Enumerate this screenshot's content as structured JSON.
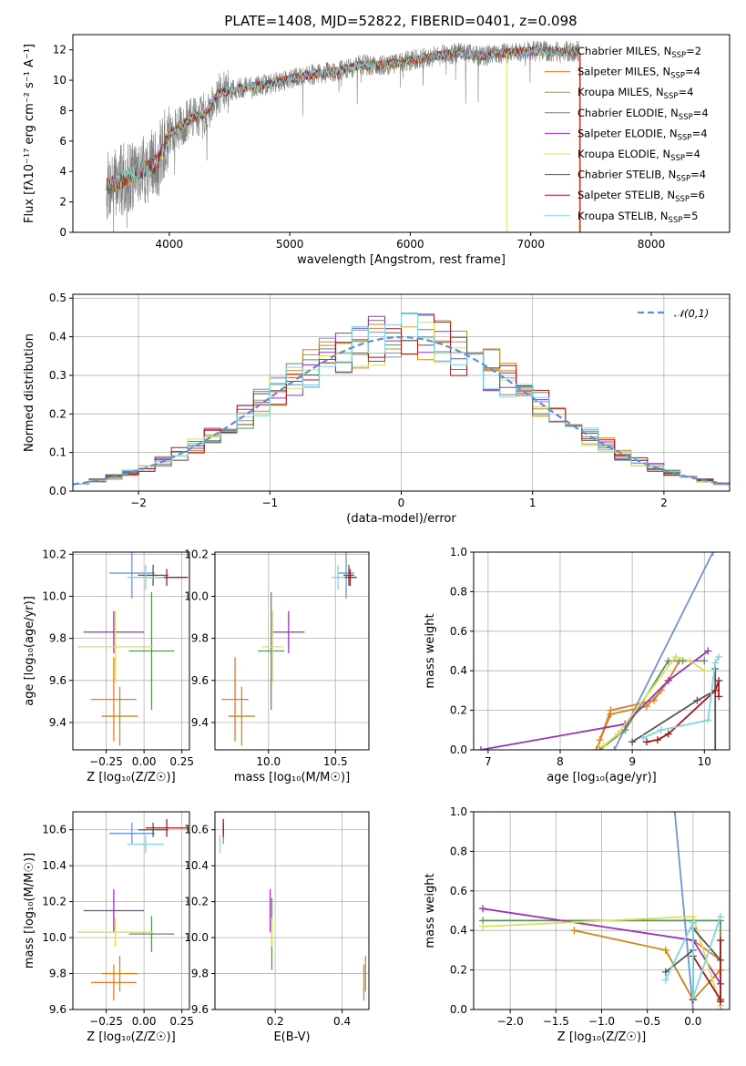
{
  "figure_title": "PLATE=1408, MJD=52822, FIBERID=0401, z=0.098",
  "models": [
    {
      "name": "Chabrier MILES",
      "nssp": "2",
      "color": "#6f93d6"
    },
    {
      "name": "Salpeter MILES",
      "nssp": "4",
      "color": "#e8782f"
    },
    {
      "name": "Kroupa MILES",
      "nssp": "4",
      "color": "#cc8a1a"
    },
    {
      "name": "Chabrier ELODIE",
      "nssp": "4",
      "color": "#5f8f5f"
    },
    {
      "name": "Salpeter ELODIE",
      "nssp": "4",
      "color": "#9932b8"
    },
    {
      "name": "Kroupa ELODIE",
      "nssp": "4",
      "color": "#d7e05a"
    },
    {
      "name": "Chabrier STELIB",
      "nssp": "4",
      "color": "#555555"
    },
    {
      "name": "Salpeter STELIB",
      "nssp": "6",
      "color": "#a81818"
    },
    {
      "name": "Kroupa STELIB",
      "nssp": "5",
      "color": "#7fd6e0"
    }
  ],
  "chart_data": [
    {
      "id": "spectrum",
      "type": "line",
      "title": "PLATE=1408, MJD=52822, FIBERID=0401, z=0.098",
      "xlabel": "wavelength [Angstrom, rest frame]",
      "ylabel": "Flux [fλ10⁻¹⁷ erg cm⁻² s⁻¹ A⁻¹]",
      "xlim": [
        3200,
        8650
      ],
      "ylim": [
        0,
        13
      ],
      "xticks": [
        4000,
        5000,
        6000,
        7000,
        8000
      ],
      "yticks": [
        0,
        2,
        4,
        6,
        8,
        10,
        12
      ],
      "legend_position": "right",
      "data_color": "#808080",
      "continuum": {
        "x": [
          3480,
          3600,
          3750,
          3900,
          4000,
          4100,
          4200,
          4300,
          4400,
          4600,
          4800,
          5000,
          5200,
          5400,
          5600,
          5800,
          6000,
          6200,
          6400,
          6600,
          6800,
          7000,
          7200,
          7400
        ],
        "y": [
          3.0,
          3.4,
          4.0,
          4.5,
          6.4,
          7.0,
          7.6,
          7.8,
          9.1,
          9.5,
          9.7,
          10.1,
          10.4,
          10.6,
          11.0,
          11.0,
          11.3,
          11.6,
          11.8,
          11.6,
          11.8,
          11.9,
          11.9,
          11.9
        ]
      }
    },
    {
      "id": "residuals",
      "type": "histogram",
      "xlabel": "(data-model)/error",
      "ylabel": "Normed distribution",
      "xlim": [
        -2.5,
        2.5
      ],
      "ylim": [
        0,
        0.51
      ],
      "xticks": [
        -2,
        -1,
        0,
        1,
        2
      ],
      "yticks": [
        0.0,
        0.1,
        0.2,
        0.3,
        0.4,
        0.5
      ],
      "reference_label": "𝒩(0,1)",
      "reference_color": "#5b8ed6"
    },
    {
      "id": "age_vs_Z",
      "type": "scatter",
      "xlabel": "Z [log₁₀(Z/Z☉)]",
      "ylabel": "age  [log₁₀(age/yr)]",
      "xlim": [
        -0.47,
        0.3
      ],
      "ylim": [
        9.27,
        10.21
      ],
      "xticks": [
        -0.25,
        0.0,
        0.25
      ],
      "yticks": [
        9.4,
        9.6,
        9.8,
        10.0,
        10.2
      ],
      "points": [
        {
          "x": -0.08,
          "y": 10.11,
          "xerr": 0.15,
          "yerr": 0.12,
          "model": 0
        },
        {
          "x": -0.2,
          "y": 9.51,
          "xerr": 0.15,
          "yerr": 0.2,
          "model": 1
        },
        {
          "x": -0.16,
          "y": 9.43,
          "xerr": 0.12,
          "yerr": 0.14,
          "model": 2
        },
        {
          "x": 0.05,
          "y": 9.74,
          "xerr": 0.15,
          "yerr": 0.28,
          "model": 3
        },
        {
          "x": -0.2,
          "y": 9.83,
          "xerr": 0.2,
          "yerr": 0.1,
          "model": 4
        },
        {
          "x": -0.19,
          "y": 9.76,
          "xerr": 0.25,
          "yerr": 0.17,
          "model": 5
        },
        {
          "x": 0.06,
          "y": 10.1,
          "xerr": 0.1,
          "yerr": 0.05,
          "model": 6
        },
        {
          "x": 0.15,
          "y": 10.09,
          "xerr": 0.14,
          "yerr": 0.04,
          "model": 7
        },
        {
          "x": 0.01,
          "y": 10.09,
          "xerr": 0.12,
          "yerr": 0.06,
          "model": 8
        }
      ]
    },
    {
      "id": "age_vs_mass",
      "type": "scatter",
      "xlabel": "mass [log₁₀(M/M☉)]",
      "ylabel": "",
      "xlim": [
        9.6,
        10.75
      ],
      "ylim": [
        9.27,
        10.21
      ],
      "xticks": [
        10.0,
        10.5
      ],
      "yticks": [
        9.4,
        9.6,
        9.8,
        10.0,
        10.2
      ],
      "points": [
        {
          "x": 10.58,
          "y": 10.11,
          "xerr": 0.06,
          "yerr": 0.12,
          "model": 0
        },
        {
          "x": 9.75,
          "y": 9.51,
          "xerr": 0.1,
          "yerr": 0.2,
          "model": 1
        },
        {
          "x": 9.8,
          "y": 9.43,
          "xerr": 0.1,
          "yerr": 0.14,
          "model": 2
        },
        {
          "x": 10.02,
          "y": 9.74,
          "xerr": 0.1,
          "yerr": 0.28,
          "model": 3
        },
        {
          "x": 10.15,
          "y": 9.83,
          "xerr": 0.12,
          "yerr": 0.1,
          "model": 4
        },
        {
          "x": 10.03,
          "y": 9.76,
          "xerr": 0.08,
          "yerr": 0.17,
          "model": 5
        },
        {
          "x": 10.6,
          "y": 10.1,
          "xerr": 0.04,
          "yerr": 0.05,
          "model": 6
        },
        {
          "x": 10.61,
          "y": 10.09,
          "xerr": 0.05,
          "yerr": 0.04,
          "model": 7
        },
        {
          "x": 10.52,
          "y": 10.09,
          "xerr": 0.05,
          "yerr": 0.06,
          "model": 8
        }
      ]
    },
    {
      "id": "mass_weight_vs_age",
      "type": "line",
      "xlabel": "age  [log₁₀(age/yr)]",
      "ylabel": "mass weight",
      "xlim": [
        6.8,
        10.35
      ],
      "ylim": [
        0,
        1
      ],
      "xticks": [
        7,
        8,
        9,
        10
      ],
      "yticks": [
        0.0,
        0.2,
        0.4,
        0.6,
        0.8,
        1.0
      ],
      "series": [
        {
          "model": 0,
          "x": [
            8.75,
            10.12
          ],
          "y": [
            0.0,
            1.0
          ]
        },
        {
          "model": 1,
          "x": [
            8.55,
            8.7,
            9.3,
            9.5,
            9.65
          ],
          "y": [
            0.05,
            0.2,
            0.25,
            0.35,
            0.45
          ]
        },
        {
          "model": 2,
          "x": [
            8.5,
            8.7,
            9.2,
            9.4
          ],
          "y": [
            0.0,
            0.18,
            0.22,
            0.3
          ]
        },
        {
          "model": 3,
          "x": [
            8.55,
            8.9,
            9.5,
            9.7,
            10.0
          ],
          "y": [
            0.0,
            0.1,
            0.45,
            0.45,
            0.45
          ]
        },
        {
          "model": 4,
          "x": [
            6.9,
            8.9,
            9.5,
            10.05
          ],
          "y": [
            0.0,
            0.13,
            0.35,
            0.5
          ]
        },
        {
          "model": 5,
          "x": [
            8.6,
            8.8,
            9.6,
            9.8,
            10.0
          ],
          "y": [
            0.02,
            0.08,
            0.47,
            0.45,
            0.4
          ]
        },
        {
          "model": 6,
          "x": [
            9.0,
            9.9,
            10.15,
            10.15,
            10.15
          ],
          "y": [
            0.04,
            0.25,
            0.3,
            0.41,
            0.0
          ]
        },
        {
          "model": 7,
          "x": [
            9.2,
            9.35,
            9.5,
            10.15,
            10.2,
            10.2
          ],
          "y": [
            0.04,
            0.05,
            0.08,
            0.3,
            0.35,
            0.27
          ]
        },
        {
          "model": 8,
          "x": [
            9.15,
            9.4,
            10.05,
            10.15,
            10.2
          ],
          "y": [
            0.06,
            0.1,
            0.15,
            0.44,
            0.47
          ]
        }
      ]
    },
    {
      "id": "mass_vs_Z",
      "type": "scatter",
      "xlabel": "Z [log₁₀(Z/Z☉)]",
      "ylabel": "mass [log₁₀(M/M☉)]",
      "xlim": [
        -0.47,
        0.3
      ],
      "ylim": [
        9.6,
        10.7
      ],
      "xticks": [
        -0.25,
        0.0,
        0.25
      ],
      "yticks": [
        9.6,
        9.8,
        10.0,
        10.2,
        10.4,
        10.6
      ],
      "points": [
        {
          "x": -0.08,
          "y": 10.58,
          "xerr": 0.15,
          "yerr": 0.06,
          "model": 0
        },
        {
          "x": -0.2,
          "y": 9.75,
          "xerr": 0.15,
          "yerr": 0.1,
          "model": 1
        },
        {
          "x": -0.16,
          "y": 9.8,
          "xerr": 0.12,
          "yerr": 0.1,
          "model": 2
        },
        {
          "x": 0.05,
          "y": 10.02,
          "xerr": 0.15,
          "yerr": 0.1,
          "model": 3
        },
        {
          "x": -0.2,
          "y": 10.15,
          "xerr": 0.2,
          "yerr": 0.12,
          "model": 4
        },
        {
          "x": -0.19,
          "y": 10.03,
          "xerr": 0.25,
          "yerr": 0.08,
          "model": 5
        },
        {
          "x": 0.06,
          "y": 10.6,
          "xerr": 0.1,
          "yerr": 0.04,
          "model": 6
        },
        {
          "x": 0.15,
          "y": 10.61,
          "xerr": 0.14,
          "yerr": 0.05,
          "model": 7
        },
        {
          "x": 0.01,
          "y": 10.52,
          "xerr": 0.12,
          "yerr": 0.05,
          "model": 8
        }
      ]
    },
    {
      "id": "mass_vs_ebv",
      "type": "scatter",
      "xlabel": "E(B-V)",
      "ylabel": "",
      "xlim": [
        0.02,
        0.48
      ],
      "ylim": [
        9.6,
        10.7
      ],
      "xticks": [
        0.2,
        0.4
      ],
      "yticks": [
        9.6,
        9.8,
        10.0,
        10.2,
        10.4,
        10.6
      ],
      "points": [
        {
          "x": 0.045,
          "y": 10.58,
          "xerr": 0,
          "yerr": 0.06,
          "model": 0
        },
        {
          "x": 0.465,
          "y": 9.75,
          "xerr": 0,
          "yerr": 0.1,
          "model": 1
        },
        {
          "x": 0.47,
          "y": 9.8,
          "xerr": 0,
          "yerr": 0.1,
          "model": 2
        },
        {
          "x": 0.19,
          "y": 10.02,
          "xerr": 0,
          "yerr": 0.2,
          "model": 3
        },
        {
          "x": 0.185,
          "y": 10.15,
          "xerr": 0,
          "yerr": 0.12,
          "model": 4
        },
        {
          "x": 0.19,
          "y": 10.03,
          "xerr": 0,
          "yerr": 0.08,
          "model": 5
        },
        {
          "x": 0.045,
          "y": 10.6,
          "xerr": 0,
          "yerr": 0.04,
          "model": 6
        },
        {
          "x": 0.045,
          "y": 10.61,
          "xerr": 0,
          "yerr": 0.05,
          "model": 7
        },
        {
          "x": 0.035,
          "y": 10.52,
          "xerr": 0,
          "yerr": 0.05,
          "model": 8
        }
      ]
    },
    {
      "id": "mass_weight_vs_Z",
      "type": "line",
      "xlabel": "Z [log₁₀(Z/Z☉)]",
      "ylabel": "mass weight",
      "xlim": [
        -2.4,
        0.4
      ],
      "ylim": [
        0,
        1
      ],
      "xticks": [
        -2.0,
        -1.5,
        -1.0,
        -0.5,
        0.0
      ],
      "yticks": [
        0.0,
        0.2,
        0.4,
        0.6,
        0.8,
        1.0
      ],
      "series": [
        {
          "model": 0,
          "x": [
            -0.2,
            0.0
          ],
          "y": [
            1.0,
            0.0
          ]
        },
        {
          "model": 1,
          "x": [
            -0.3,
            0.0,
            0.0,
            0.3
          ],
          "y": [
            0.3,
            0.05,
            0.35,
            0.25
          ]
        },
        {
          "model": 2,
          "x": [
            -1.3,
            -0.3,
            0.0,
            0.3
          ],
          "y": [
            0.4,
            0.3,
            0.05,
            0.2
          ]
        },
        {
          "model": 3,
          "x": [
            -2.3,
            0.0,
            0.3,
            0.3
          ],
          "y": [
            0.45,
            0.45,
            0.45,
            0.0
          ]
        },
        {
          "model": 4,
          "x": [
            -2.3,
            0.0,
            0.3
          ],
          "y": [
            0.51,
            0.35,
            0.13
          ]
        },
        {
          "model": 5,
          "x": [
            -2.3,
            0.0,
            0.3
          ],
          "y": [
            0.42,
            0.47,
            0.02
          ]
        },
        {
          "model": 6,
          "x": [
            -0.3,
            0.0,
            0.0,
            0.3
          ],
          "y": [
            0.19,
            0.3,
            0.41,
            0.25
          ]
        },
        {
          "model": 7,
          "x": [
            0.0,
            0.0,
            0.3,
            0.3,
            0.3
          ],
          "y": [
            0.05,
            0.27,
            0.05,
            0.35,
            0.04
          ]
        },
        {
          "model": 8,
          "x": [
            -0.3,
            0.0,
            0.0,
            0.3
          ],
          "y": [
            0.15,
            0.44,
            0.06,
            0.47
          ]
        }
      ]
    }
  ]
}
